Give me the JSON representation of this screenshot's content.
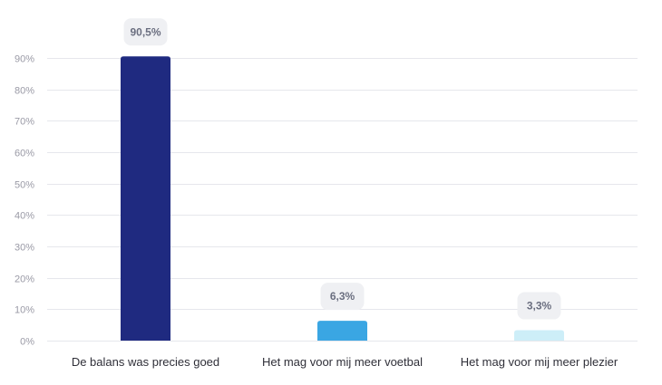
{
  "chart_data": {
    "type": "bar",
    "categories": [
      "De balans was precies goed",
      "Het mag voor mij meer voetbal",
      "Het mag voor mij meer plezier"
    ],
    "values": [
      90.5,
      6.3,
      3.3
    ],
    "value_labels": [
      "90,5%",
      "6,3%",
      "3,3%"
    ],
    "title": "",
    "xlabel": "",
    "ylabel": "",
    "ylim": [
      0,
      90
    ],
    "yticks": [
      0,
      10,
      20,
      30,
      40,
      50,
      60,
      70,
      80,
      90
    ],
    "ytick_labels": [
      "0%",
      "10%",
      "20%",
      "30%",
      "40%",
      "50%",
      "60%",
      "70%",
      "80%",
      "90%"
    ],
    "grid": true,
    "legend": "none",
    "colors": [
      "#1f2a80",
      "#3aa6e3",
      "#cdeef8"
    ],
    "gridline_color": "#e6e7ec",
    "label_bg_color": "#eff0f3"
  }
}
